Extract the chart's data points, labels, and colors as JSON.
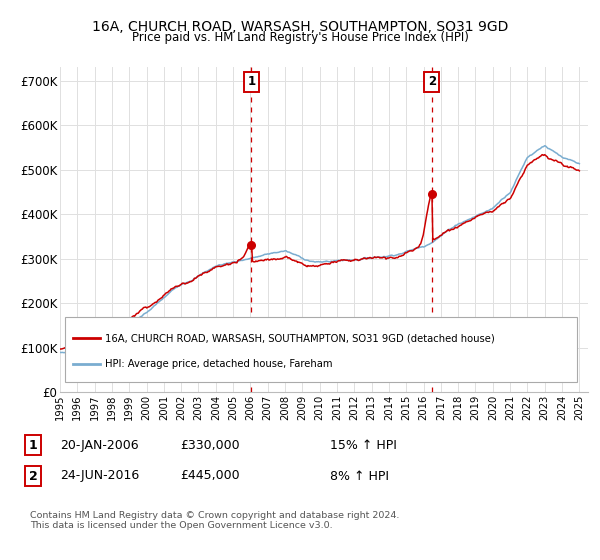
{
  "title": "16A, CHURCH ROAD, WARSASH, SOUTHAMPTON, SO31 9GD",
  "subtitle": "Price paid vs. HM Land Registry's House Price Index (HPI)",
  "ylabel_ticks": [
    "£0",
    "£100K",
    "£200K",
    "£300K",
    "£400K",
    "£500K",
    "£600K",
    "£700K"
  ],
  "ytick_vals": [
    0,
    100000,
    200000,
    300000,
    400000,
    500000,
    600000,
    700000
  ],
  "ylim": [
    0,
    730000
  ],
  "xlim_start": 1995.0,
  "xlim_end": 2025.5,
  "x_years": [
    1995,
    1996,
    1997,
    1998,
    1999,
    2000,
    2001,
    2002,
    2003,
    2004,
    2005,
    2006,
    2007,
    2008,
    2009,
    2010,
    2011,
    2012,
    2013,
    2014,
    2015,
    2016,
    2017,
    2018,
    2019,
    2020,
    2021,
    2022,
    2023,
    2024,
    2025
  ],
  "red_line_color": "#cc0000",
  "blue_line_color": "#7aadd0",
  "grid_color": "#e0e0e0",
  "bg_color": "#ffffff",
  "sale1_x": 2006.05,
  "sale1_y": 330000,
  "sale2_x": 2016.48,
  "sale2_y": 445000,
  "legend_red_label": "16A, CHURCH ROAD, WARSASH, SOUTHAMPTON, SO31 9GD (detached house)",
  "legend_blue_label": "HPI: Average price, detached house, Fareham",
  "annotation1_date": "20-JAN-2006",
  "annotation1_price": "£330,000",
  "annotation1_hpi": "15% ↑ HPI",
  "annotation2_date": "24-JUN-2016",
  "annotation2_price": "£445,000",
  "annotation2_hpi": "8% ↑ HPI",
  "footer": "Contains HM Land Registry data © Crown copyright and database right 2024.\nThis data is licensed under the Open Government Licence v3.0."
}
